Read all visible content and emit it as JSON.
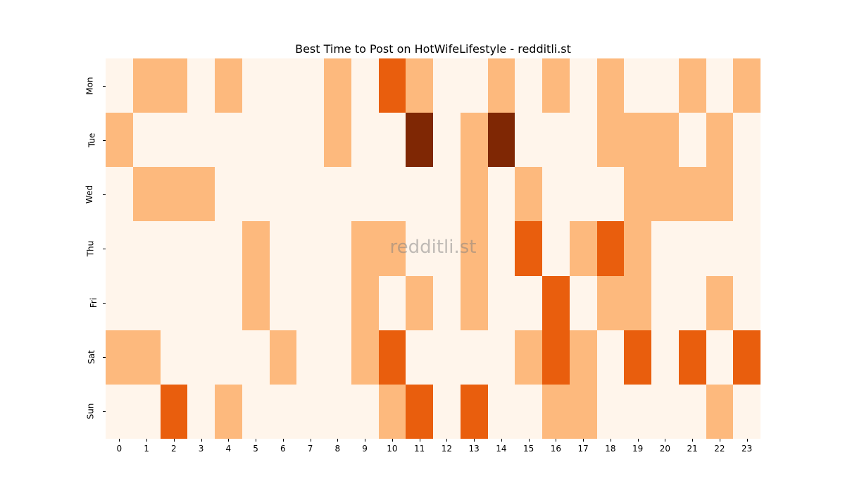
{
  "chart_data": {
    "type": "heatmap",
    "title": "Best Time to Post on HotWifeLifestyle - redditli.st",
    "xlabel": "",
    "ylabel": "",
    "x": [
      "0",
      "1",
      "2",
      "3",
      "4",
      "5",
      "6",
      "7",
      "8",
      "9",
      "10",
      "11",
      "12",
      "13",
      "14",
      "15",
      "16",
      "17",
      "18",
      "19",
      "20",
      "21",
      "22",
      "23"
    ],
    "y": [
      "Mon",
      "Tue",
      "Wed",
      "Thu",
      "Fri",
      "Sat",
      "Sun"
    ],
    "values": [
      [
        0,
        1,
        1,
        0,
        1,
        0,
        0,
        0,
        1,
        0,
        2,
        1,
        0,
        0,
        1,
        0,
        1,
        0,
        1,
        0,
        0,
        1,
        0,
        1
      ],
      [
        1,
        0,
        0,
        0,
        0,
        0,
        0,
        0,
        1,
        0,
        0,
        3,
        0,
        1,
        3,
        0,
        0,
        0,
        1,
        1,
        1,
        0,
        1,
        0
      ],
      [
        0,
        1,
        1,
        1,
        0,
        0,
        0,
        0,
        0,
        0,
        0,
        0,
        0,
        1,
        0,
        1,
        0,
        0,
        0,
        1,
        1,
        1,
        1,
        0
      ],
      [
        0,
        0,
        0,
        0,
        0,
        1,
        0,
        0,
        0,
        1,
        1,
        0,
        0,
        1,
        0,
        2,
        0,
        1,
        2,
        1,
        0,
        0,
        0,
        0
      ],
      [
        0,
        0,
        0,
        0,
        0,
        1,
        0,
        0,
        0,
        1,
        0,
        1,
        0,
        1,
        0,
        0,
        2,
        0,
        1,
        1,
        0,
        0,
        1,
        0
      ],
      [
        1,
        1,
        0,
        0,
        0,
        0,
        1,
        0,
        0,
        1,
        2,
        0,
        0,
        0,
        0,
        1,
        2,
        1,
        0,
        2,
        0,
        2,
        0,
        2
      ],
      [
        0,
        0,
        2,
        0,
        1,
        0,
        0,
        0,
        0,
        0,
        1,
        2,
        0,
        2,
        0,
        0,
        1,
        1,
        0,
        0,
        0,
        0,
        1,
        0
      ]
    ],
    "colormap": "Oranges",
    "level_colors": [
      "#fff5eb",
      "#fdb97d",
      "#e95e0d",
      "#7f2704"
    ],
    "grid": false,
    "legend": "none",
    "watermark": "redditli.st"
  }
}
